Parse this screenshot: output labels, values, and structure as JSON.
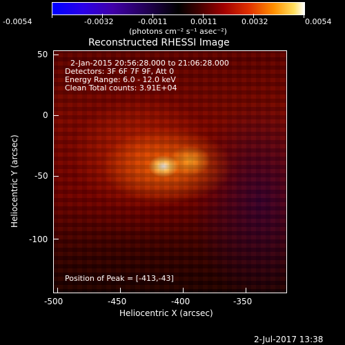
{
  "colorbar": {
    "ticks": [
      "-0.0054",
      "-0.0032",
      "-0.0011",
      "0.0011",
      "0.0032",
      "0.0054"
    ],
    "units": "(photons cm⁻² s⁻¹ asec⁻²)"
  },
  "plot": {
    "title": "Reconstructed RHESSI Image",
    "xlabel": "Heliocentric X (arcsec)",
    "ylabel": "Heliocentric Y (arcsec)",
    "xticks": [
      "-500",
      "-450",
      "-400",
      "-350"
    ],
    "yticks": [
      "50",
      "0",
      "-50",
      "-100"
    ],
    "info_lines": [
      "2-Jan-2015 20:56:28.000 to 21:06:28.000",
      "Detectors: 3F 6F 7F 9F, Att 0",
      "Energy Range: 6.0 - 12.0 keV",
      "Clean    Total counts: 3.91E+04"
    ],
    "peak_text": "Position of Peak = [-413,-43]"
  },
  "footer": {
    "timestamp": "2-Jul-2017 13:38"
  }
}
